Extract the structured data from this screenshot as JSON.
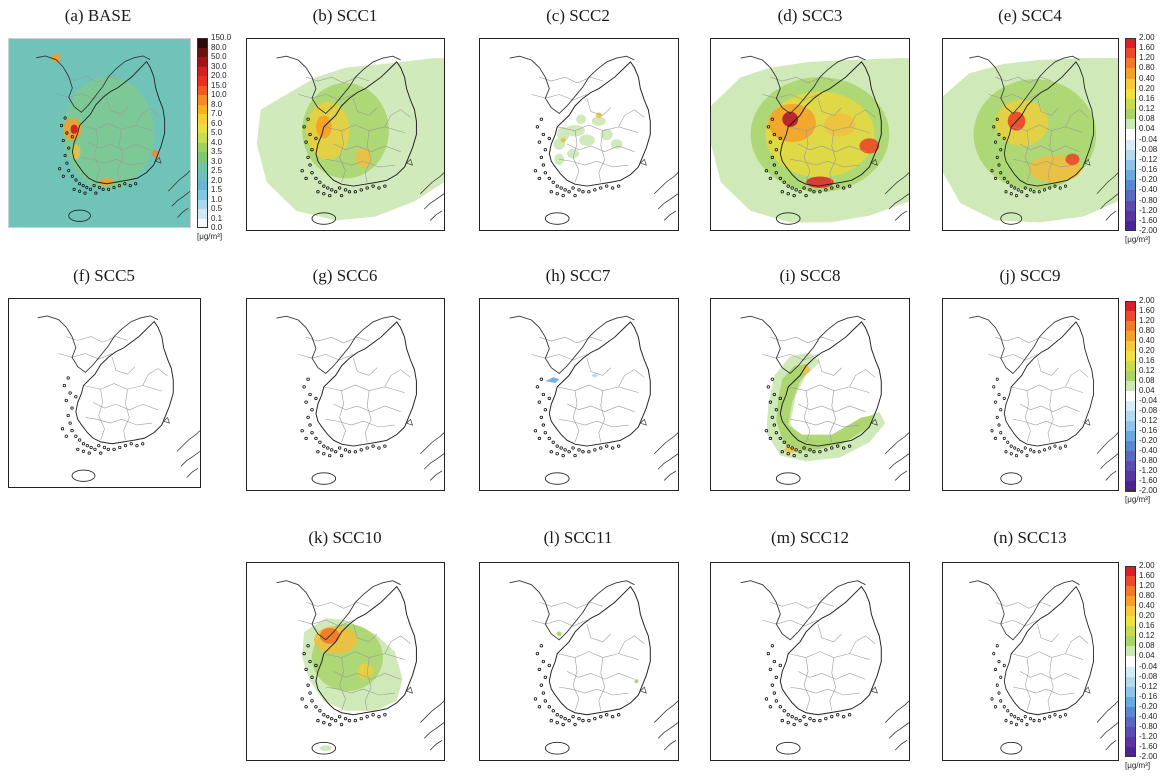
{
  "panels": [
    {
      "id": "a",
      "title": "(a) BASE",
      "kind": "base"
    },
    {
      "id": "b",
      "title": "(b) SCC1",
      "kind": "scc1"
    },
    {
      "id": "c",
      "title": "(c) SCC2",
      "kind": "scc2"
    },
    {
      "id": "d",
      "title": "(d) SCC3",
      "kind": "scc3"
    },
    {
      "id": "e",
      "title": "(e) SCC4",
      "kind": "scc4"
    },
    {
      "id": "f",
      "title": "(f) SCC5",
      "kind": "empty"
    },
    {
      "id": "g",
      "title": "(g) SCC6",
      "kind": "empty"
    },
    {
      "id": "h",
      "title": "(h) SCC7",
      "kind": "scc7"
    },
    {
      "id": "i",
      "title": "(i) SCC8",
      "kind": "scc8"
    },
    {
      "id": "j",
      "title": "(j) SCC9",
      "kind": "empty"
    },
    {
      "id": "k",
      "title": "(k) SCC10",
      "kind": "scc10"
    },
    {
      "id": "l",
      "title": "(l) SCC11",
      "kind": "scc11"
    },
    {
      "id": "m",
      "title": "(m) SCC12",
      "kind": "empty"
    },
    {
      "id": "n",
      "title": "(n) SCC13",
      "kind": "empty"
    }
  ],
  "legend_base": {
    "unit": "[μg/m³]",
    "ticks": [
      "150.0",
      "80.0",
      "50.0",
      "30.0",
      "20.0",
      "15.0",
      "10.0",
      "8.0",
      "7.0",
      "6.0",
      "5.0",
      "4.0",
      "3.5",
      "3.0",
      "2.5",
      "2.0",
      "1.5",
      "1.0",
      "0.5",
      "0.1",
      "0.0"
    ],
    "colors": [
      "#2b0a0a",
      "#6b1010",
      "#a01515",
      "#d02020",
      "#e83020",
      "#f05a20",
      "#f58a20",
      "#f8b020",
      "#f5d030",
      "#e8e040",
      "#c8dc50",
      "#a0d060",
      "#80c870",
      "#70c4a0",
      "#6cc0c0",
      "#6ab4d4",
      "#80c8e0",
      "#a8d8ea",
      "#d0e8f2",
      "#f4f8fa"
    ]
  },
  "legend_diff": {
    "unit": "[μg/m³]",
    "ticks": [
      "2.00",
      "1.60",
      "1.20",
      "0.80",
      "0.40",
      "0.20",
      "0.16",
      "0.12",
      "0.08",
      "0.04",
      "-0.04",
      "-0.08",
      "-0.12",
      "-0.16",
      "-0.20",
      "-0.40",
      "-0.80",
      "-1.20",
      "-1.60",
      "-2.00"
    ],
    "colors": [
      "#d8202a",
      "#e84a2a",
      "#f07a28",
      "#f5a028",
      "#f7c83a",
      "#f0e040",
      "#c8dc50",
      "#a8d468",
      "#cce8b4",
      "#ffffff",
      "#d6ecf6",
      "#b4daf0",
      "#8ec4ea",
      "#6aa8e0",
      "#5a88d0",
      "#5a68c0",
      "#5a4cb0",
      "#5a34a0",
      "#4a2490"
    ]
  }
}
